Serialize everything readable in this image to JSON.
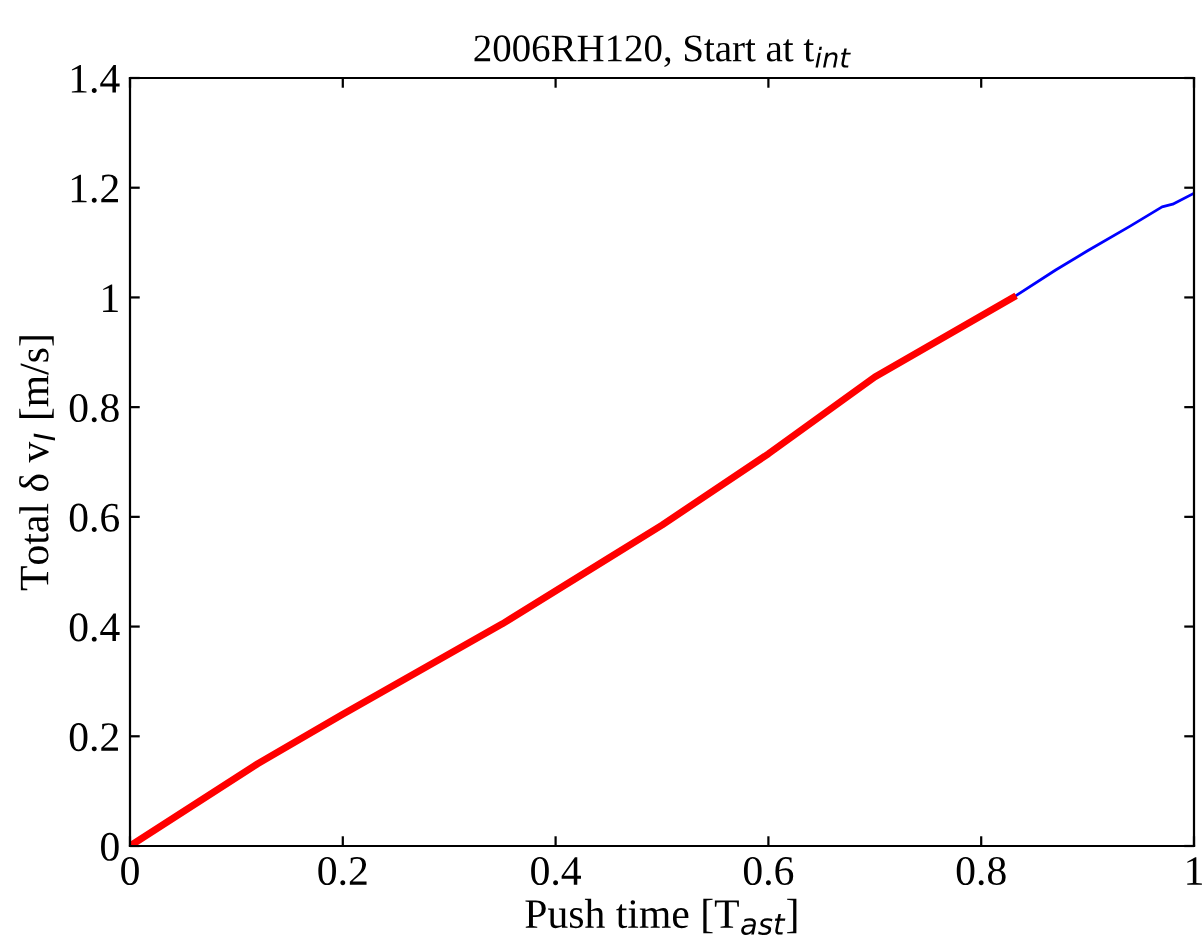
{
  "chart_data": {
    "type": "line",
    "title": "2006RH120, Start at t$_{int}$",
    "xlabel": "Push time [T$_{ast}$]",
    "ylabel": "Total δ v$_{I}$ [m/s]",
    "series": [
      {
        "color": "#0000ff",
        "x": [
          0.83,
          0.87,
          0.9,
          0.94,
          0.97,
          0.98,
          1.0
        ],
        "values": [
          1.0,
          1.05,
          1.085,
          1.13,
          1.165,
          1.17,
          1.19
        ]
      },
      {
        "color": "#ff0000",
        "x": [
          0,
          0.12,
          0.2,
          0.35,
          0.45,
          0.5,
          0.6,
          0.7,
          0.83
        ],
        "values": [
          0,
          0.15,
          0.24,
          0.405,
          0.525,
          0.585,
          0.715,
          0.855,
          1.0
        ]
      }
    ],
    "xlim": [
      0,
      1
    ],
    "ylim": [
      0,
      1.4
    ],
    "xticks": [
      0,
      0.2,
      0.4,
      0.6,
      0.8,
      1
    ],
    "yticks": [
      0,
      0.2,
      0.4,
      0.6,
      0.8,
      1,
      1.2,
      1.4
    ],
    "grid": false,
    "legend": false
  }
}
